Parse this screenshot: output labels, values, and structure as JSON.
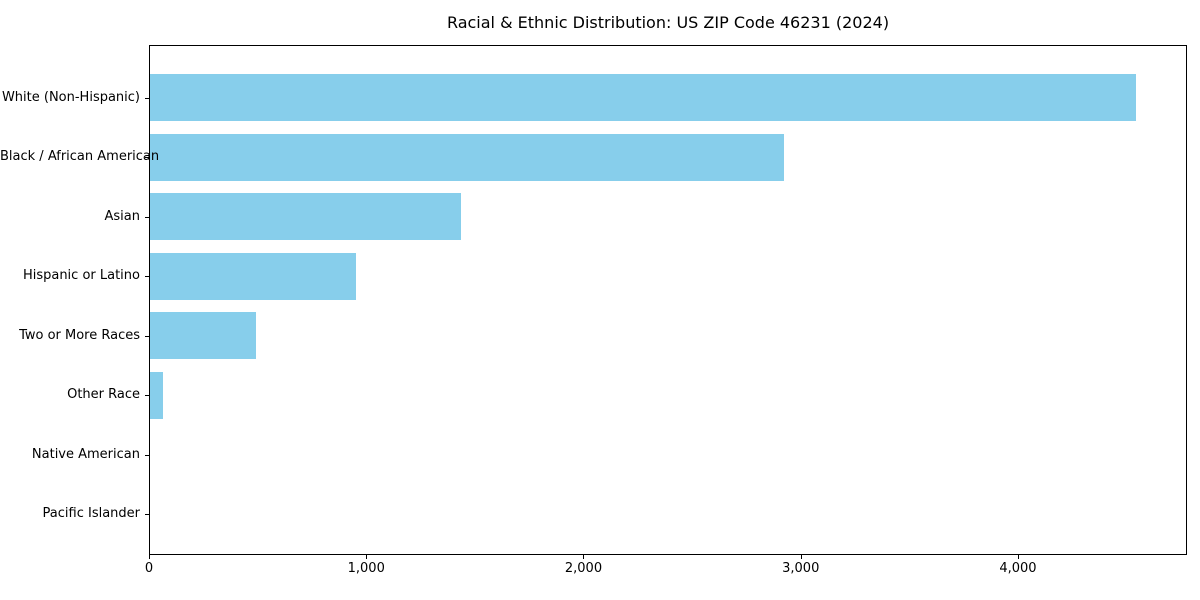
{
  "chart_data": {
    "type": "bar",
    "orientation": "horizontal",
    "title": "Racial & Ethnic Distribution: US ZIP Code 46231 (2024)",
    "categories": [
      "White (Non-Hispanic)",
      "Black / African American",
      "Asian",
      "Hispanic or Latino",
      "Two or More Races",
      "Other Race",
      "Native American",
      "Pacific Islander"
    ],
    "values": [
      4540,
      2920,
      1430,
      950,
      490,
      60,
      0,
      0
    ],
    "xlabel": "",
    "ylabel": "",
    "xlim": [
      0,
      4778
    ],
    "x_ticks": [
      0,
      1000,
      2000,
      3000,
      4000
    ],
    "x_tick_labels": [
      "0",
      "1,000",
      "2,000",
      "3,000",
      "4,000"
    ],
    "bar_color": "#87CEEB",
    "background_color": "#ffffff",
    "spine_color": "#000000",
    "grid": false,
    "legend": "none"
  }
}
